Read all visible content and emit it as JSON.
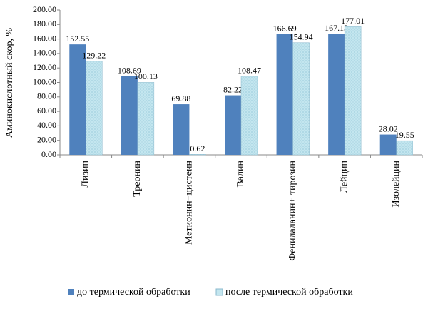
{
  "chart_data": {
    "type": "bar",
    "y_label": "Аминокислотный скор, %",
    "categories": [
      "Лизин",
      "Треонин",
      "Метионин+цистеин",
      "Валин",
      "Фенилаланин+ тирозин",
      "Лейцин",
      "Изолейцин"
    ],
    "series": [
      {
        "name": "до термической обработки",
        "color": "#4f81bd",
        "values": [
          152.55,
          108.69,
          69.88,
          82.22,
          166.69,
          167.13,
          28.02
        ]
      },
      {
        "name": "после термической обработки",
        "color": "#c3e6ef",
        "values": [
          129.22,
          100.13,
          0.62,
          108.47,
          154.94,
          177.01,
          19.55
        ]
      }
    ],
    "ylim": [
      0,
      200
    ],
    "yticks": [
      {
        "value": 0,
        "label": "0.00"
      },
      {
        "value": 20,
        "label": "20.00"
      },
      {
        "value": 40,
        "label": "40.00"
      },
      {
        "value": 60,
        "label": "60.00"
      },
      {
        "value": 80,
        "label": "80.00"
      },
      {
        "value": 100,
        "label": "100.00"
      },
      {
        "value": 120,
        "label": "120.00"
      },
      {
        "value": 140,
        "label": "140.00"
      },
      {
        "value": 160,
        "label": "160.00"
      },
      {
        "value": 180,
        "label": "180.00"
      },
      {
        "value": 200,
        "label": "200.00"
      }
    ],
    "grid": false,
    "legend": "bottom"
  }
}
